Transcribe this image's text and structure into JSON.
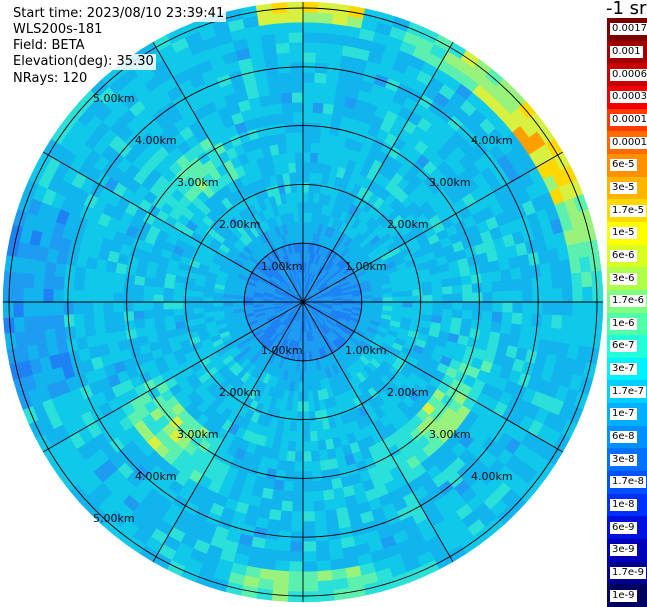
{
  "info": {
    "start_time": "Start time: 2023/08/10 23:39:41",
    "instrument": "WLS200s-181",
    "field": "Field: BETA",
    "elevation": "Elevation(deg): 35.30",
    "nrays": "NRays: 120"
  },
  "colorbar": {
    "unit_label": "-1 sr",
    "labels": [
      "0.0017",
      "0.001",
      "0.0006",
      "0.0003",
      "0.00017",
      "0.0001",
      "6e-5",
      "3e-5",
      "1.7e-5",
      "1e-5",
      "6e-6",
      "3e-6",
      "1.7e-6",
      "1e-6",
      "6e-7",
      "3e-7",
      "1.7e-7",
      "1e-7",
      "6e-8",
      "3e-8",
      "1.7e-8",
      "1e-8",
      "6e-9",
      "3e-9",
      "1.7e-9",
      "1e-9"
    ],
    "colors": [
      "#7a0000",
      "#a00000",
      "#c80000",
      "#f00000",
      "#ff3a00",
      "#ff6a00",
      "#ff9000",
      "#ffb400",
      "#ffd800",
      "#ffff00",
      "#d8ff20",
      "#b0ff48",
      "#80ff80",
      "#50ffa8",
      "#20ffd8",
      "#00f0ff",
      "#00d0ff",
      "#00b0ff",
      "#0090ff",
      "#0070ff",
      "#0050ff",
      "#0030ff",
      "#0010e0",
      "#0000b8",
      "#000090",
      "#000060"
    ]
  },
  "chart_data": {
    "type": "heatmap",
    "projection": "polar PPI",
    "field": "BETA",
    "unit": "-1 sr",
    "range_rings_km": [
      1,
      2,
      3,
      4,
      5
    ],
    "ring_labels": {
      "r1": "1.00km",
      "r2": "2.00km",
      "r3": "3.00km",
      "r4": "4.00km",
      "r5": "5.00km"
    },
    "max_range_km": 5.1,
    "azimuth_spokes_deg": [
      0,
      30,
      60,
      90,
      120,
      150,
      180,
      210,
      240,
      270,
      300,
      330
    ],
    "nrays": 120,
    "color_scale": "log",
    "value_range": [
      1e-09,
      0.0017
    ]
  }
}
